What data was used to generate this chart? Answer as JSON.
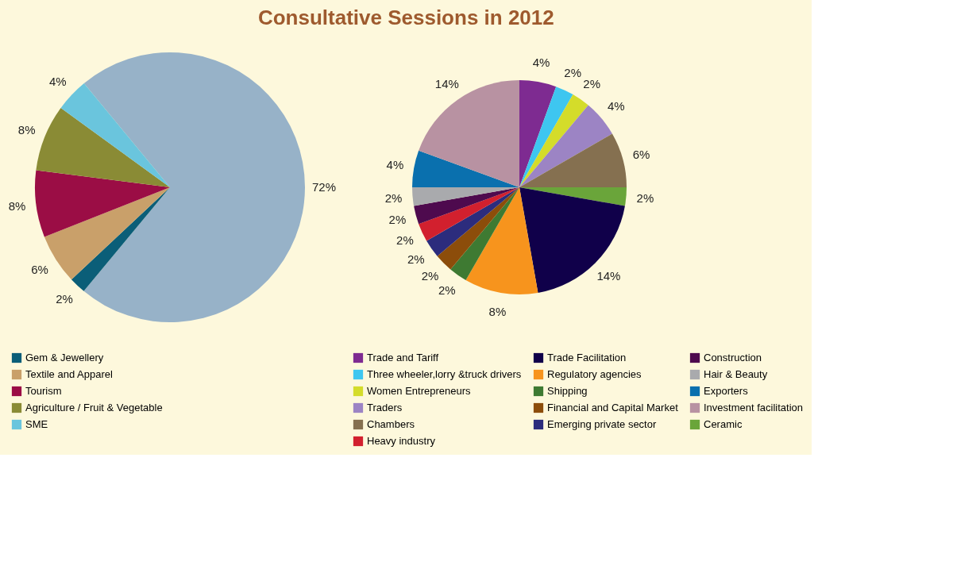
{
  "chart_data": [
    {
      "type": "pie",
      "title": "Consultative Sessions in 2012",
      "legend": "bottom",
      "categories": [
        null,
        "Gem  & Jewellery",
        "Textile and Apparel",
        "Tourism",
        "Agriculture / Fruit & Vegetable",
        "SME"
      ],
      "values": [
        72,
        2,
        6,
        8,
        8,
        4
      ],
      "value_labels": [
        "72%",
        "2%",
        "6%",
        "8%",
        "8%",
        "4%"
      ],
      "colors": [
        "#97b2c8",
        "#0b5e78",
        "#c9a06a",
        "#9b0d45",
        "#8a8b35",
        "#6ac5dd"
      ]
    },
    {
      "type": "pie",
      "legend": "bottom",
      "categories": [
        "Trade and Tariff",
        "Three wheeler,lorry &truck drivers",
        "Women Entrepreneurs",
        "Traders",
        "Chambers",
        "Ceramic",
        "Trade Facilitation",
        "Regulatory agencies",
        "Shipping",
        "Financial and Capital Market",
        "Emerging private sector",
        "Heavy industry",
        "Construction",
        "Hair & Beauty",
        "Exporters",
        "Investment facilitation"
      ],
      "values": [
        4,
        2,
        2,
        4,
        6,
        2,
        14,
        8,
        2,
        2,
        2,
        2,
        2,
        2,
        4,
        14
      ],
      "value_labels": [
        "4%",
        "2%",
        "2%",
        "4%",
        "6%",
        "2%",
        "14%",
        "8%",
        "2%",
        "2%",
        "2%",
        "2%",
        "2%",
        "2%",
        "4%",
        "14%"
      ],
      "colors": [
        "#7e2b91",
        "#3ec6f0",
        "#d4dc2a",
        "#9c84c4",
        "#857050",
        "#6aa53a",
        "#10004a",
        "#f7941d",
        "#3e7a32",
        "#8c4d0a",
        "#2c2c7d",
        "#d2202e",
        "#4e0a4e",
        "#a9aaad",
        "#0a70ae",
        "#b892a2"
      ]
    }
  ]
}
